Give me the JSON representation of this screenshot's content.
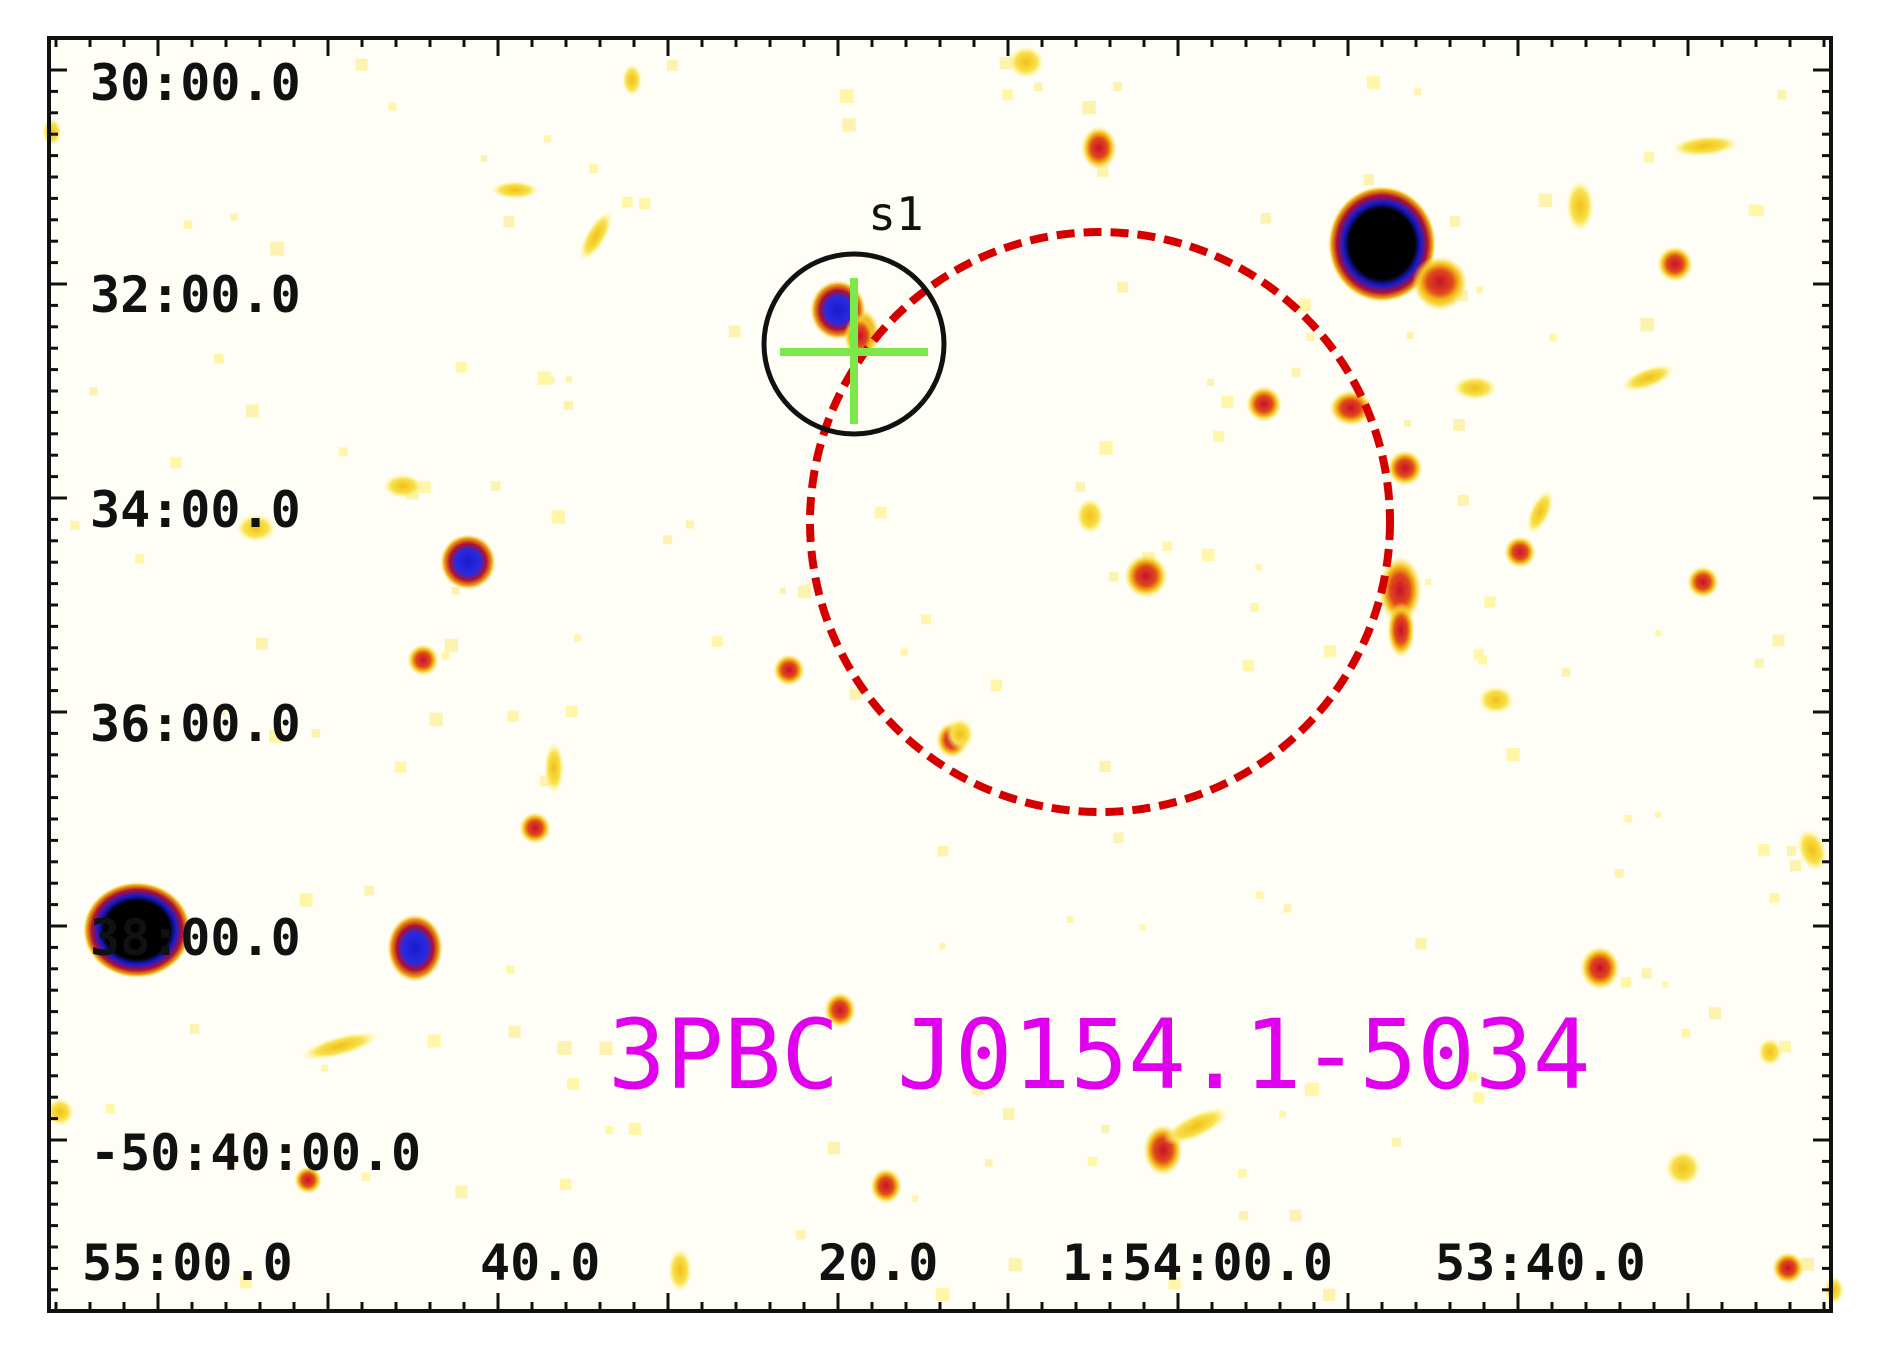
{
  "image": {
    "title": "3PBC J0154.1-5034",
    "title_color": "#e000ee",
    "region_color": "#d40000",
    "marker_color": "#7ee84a",
    "source_circle_color": "#111111",
    "frame_color": "#111111"
  },
  "axes": {
    "dec_labels": [
      "30:00.0",
      "32:00.0",
      "34:00.0",
      "36:00.0",
      "38:00.0",
      "-50:40:00.0"
    ],
    "ra_labels": [
      "55:00.0",
      "40.0",
      "20.0",
      "1:54:00.0",
      "53:40.0"
    ]
  },
  "sources": [
    {
      "name": "s1"
    }
  ]
}
